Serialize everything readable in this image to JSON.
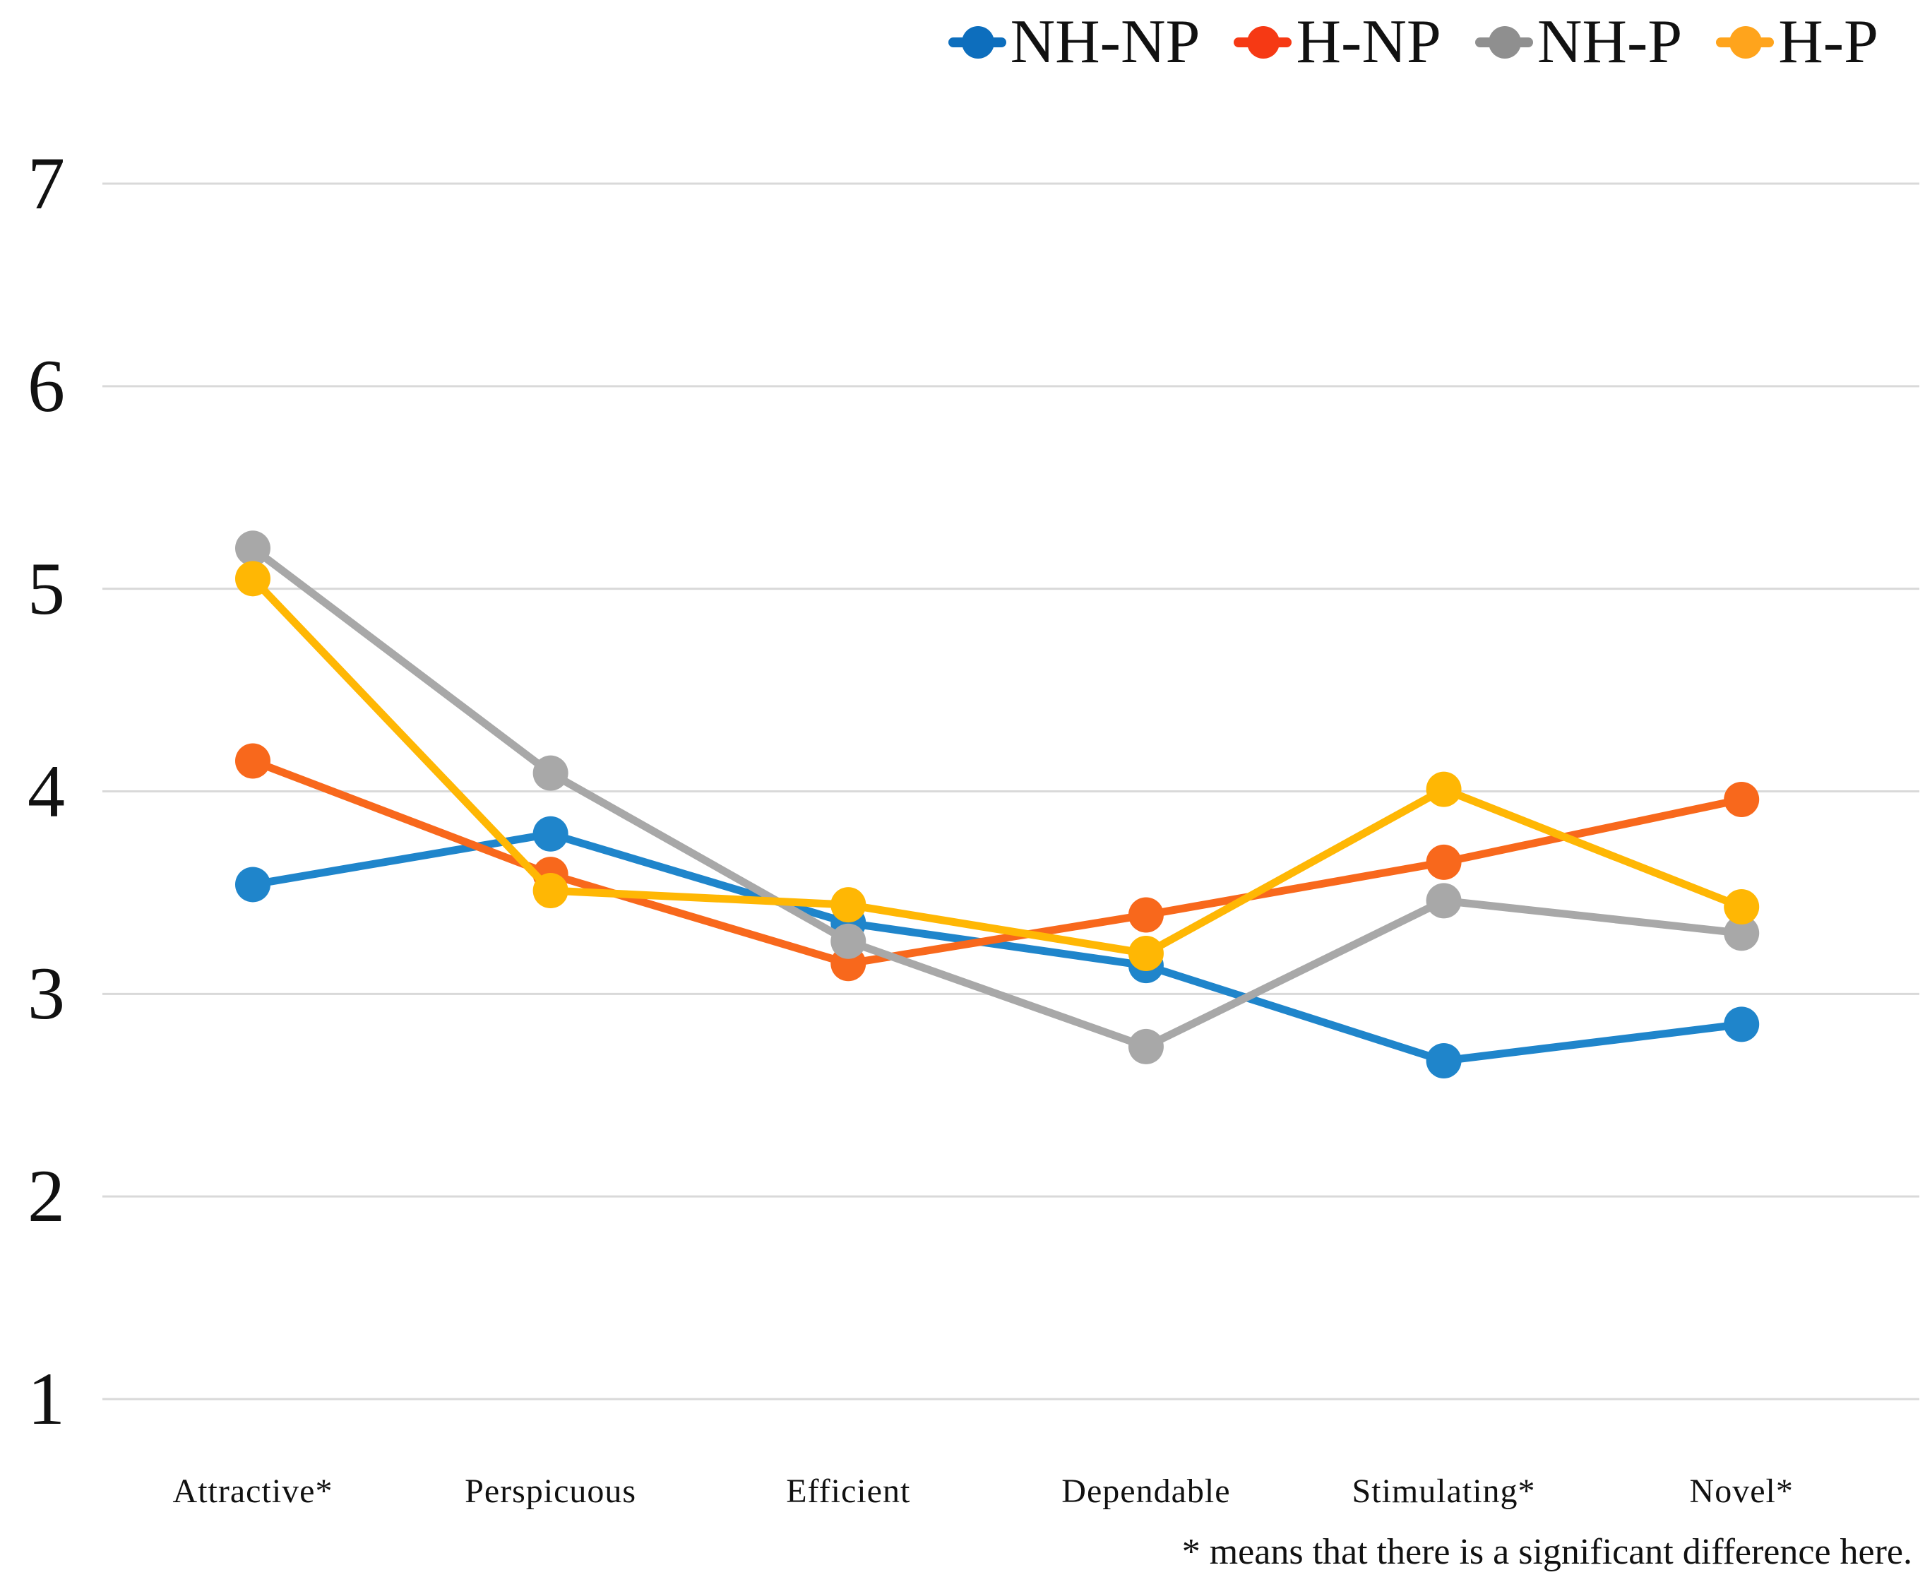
{
  "chart_data": {
    "type": "line",
    "title": "",
    "categories": [
      "Attractive*",
      "Perspicuous",
      "Efficient",
      "Dependable",
      "Stimulating*",
      "Novel*"
    ],
    "series": [
      {
        "name": "NH-NP",
        "color": "#1F85CB",
        "legend_color": "#0D6EBD",
        "values": [
          3.54,
          3.79,
          3.35,
          3.14,
          2.67,
          2.85
        ]
      },
      {
        "name": "H-NP",
        "color": "#F8681C",
        "legend_color": "#F63914",
        "values": [
          4.15,
          3.59,
          3.15,
          3.39,
          3.65,
          3.96
        ]
      },
      {
        "name": "NH-P",
        "color": "#A8A8A8",
        "legend_color": "#8F8F8F",
        "values": [
          5.2,
          4.09,
          3.26,
          2.74,
          3.46,
          3.3
        ]
      },
      {
        "name": "H-P",
        "color": "#FFB704",
        "legend_color": "#FFA41C",
        "values": [
          5.05,
          3.51,
          3.44,
          3.2,
          4.01,
          3.43
        ]
      }
    ],
    "xlabel": "",
    "ylabel": "",
    "ylim": [
      1,
      7
    ],
    "yticks": [
      1,
      2,
      3,
      4,
      5,
      6,
      7
    ],
    "grid": true,
    "gridline_color": "#D9D9D9",
    "legend_position": "top-right",
    "footnote": "* means that there is a significant difference here."
  }
}
